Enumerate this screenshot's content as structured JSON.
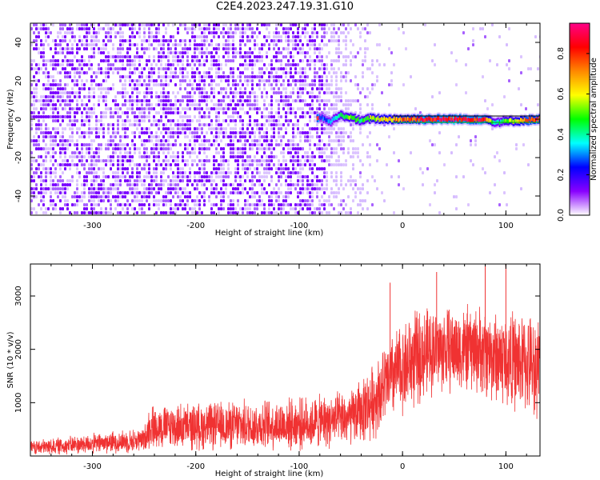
{
  "title": "C2E4.2023.247.19.31.G10",
  "chart_data": [
    {
      "type": "heatmap",
      "name": "spectrogram",
      "xlabel": "Height of straight line (km)",
      "ylabel": "Frequency (Hz)",
      "xlim": [
        -360,
        133
      ],
      "ylim": [
        -50,
        50
      ],
      "xticks": [
        -300,
        -200,
        -100,
        0,
        100
      ],
      "yticks": [
        -40,
        -20,
        0,
        20,
        40
      ],
      "grid": false,
      "colorbar": {
        "label": "Normalized spectral amplitude",
        "range": [
          0,
          0.95
        ],
        "ticks": [
          "0.0",
          "0.2",
          "0.4",
          "0.6",
          "0.8"
        ],
        "colors": [
          "#ffffff",
          "#8800ff",
          "#0000ff",
          "#00ffff",
          "#00ff00",
          "#ffff00",
          "#ff8800",
          "#ff0000",
          "#ff0088"
        ]
      },
      "noise_region": {
        "x_from": -360,
        "x_to": -75,
        "amplitude": 0.1
      },
      "noise_fade": {
        "x_from": -75,
        "x_to": -20
      },
      "signal_line": {
        "frequency": 0,
        "x_from": -82,
        "x_to": 133,
        "points": [
          {
            "x": -80,
            "freq": 1.5,
            "amp": 0.28
          },
          {
            "x": -70,
            "freq": -1.5,
            "amp": 0.3
          },
          {
            "x": -60,
            "freq": 2.0,
            "amp": 0.42
          },
          {
            "x": -50,
            "freq": 1.0,
            "amp": 0.5
          },
          {
            "x": -40,
            "freq": -1.0,
            "amp": 0.45
          },
          {
            "x": -30,
            "freq": 0.5,
            "amp": 0.55
          },
          {
            "x": -20,
            "freq": 0.0,
            "amp": 0.6
          },
          {
            "x": -10,
            "freq": 0.0,
            "amp": 0.65
          },
          {
            "x": 0,
            "freq": 0.0,
            "amp": 0.72
          },
          {
            "x": 20,
            "freq": 0.0,
            "amp": 0.82
          },
          {
            "x": 40,
            "freq": 0.0,
            "amp": 0.85
          },
          {
            "x": 60,
            "freq": 0.0,
            "amp": 0.85
          },
          {
            "x": 80,
            "freq": 0.0,
            "amp": 0.83
          },
          {
            "x": 90,
            "freq": -1.5,
            "amp": 0.35
          },
          {
            "x": 133,
            "freq": 0.0,
            "amp": 0.85
          }
        ]
      }
    },
    {
      "type": "line",
      "name": "snr",
      "xlabel": "Height of straight line (km)",
      "ylabel": "SNR (10 * v/v)",
      "xlim": [
        -360,
        133
      ],
      "ylim": [
        0,
        3600
      ],
      "xticks": [
        -300,
        -200,
        -100,
        0,
        100
      ],
      "yticks": [
        1000,
        2000,
        3000
      ],
      "grid": false,
      "series": [
        {
          "color": "#f03232",
          "envelope": [
            {
              "x": -360,
              "mean": 150,
              "spread": 120
            },
            {
              "x": -250,
              "mean": 300,
              "spread": 200
            },
            {
              "x": -245,
              "mean": 550,
              "spread": 350
            },
            {
              "x": -200,
              "mean": 550,
              "spread": 380
            },
            {
              "x": -100,
              "mean": 600,
              "spread": 420
            },
            {
              "x": -50,
              "mean": 700,
              "spread": 450
            },
            {
              "x": -30,
              "mean": 1000,
              "spread": 600
            },
            {
              "x": -10,
              "mean": 1500,
              "spread": 700
            },
            {
              "x": 10,
              "mean": 1800,
              "spread": 800
            },
            {
              "x": 30,
              "mean": 2000,
              "spread": 700
            },
            {
              "x": 70,
              "mean": 2000,
              "spread": 700
            },
            {
              "x": 100,
              "mean": 1800,
              "spread": 800
            },
            {
              "x": 133,
              "mean": 1700,
              "spread": 800
            }
          ],
          "peaks": [
            {
              "x": -12,
              "y": 3250
            },
            {
              "x": 33,
              "y": 3450
            },
            {
              "x": 80,
              "y": 3600
            },
            {
              "x": 100,
              "y": 3600
            }
          ]
        }
      ]
    }
  ]
}
